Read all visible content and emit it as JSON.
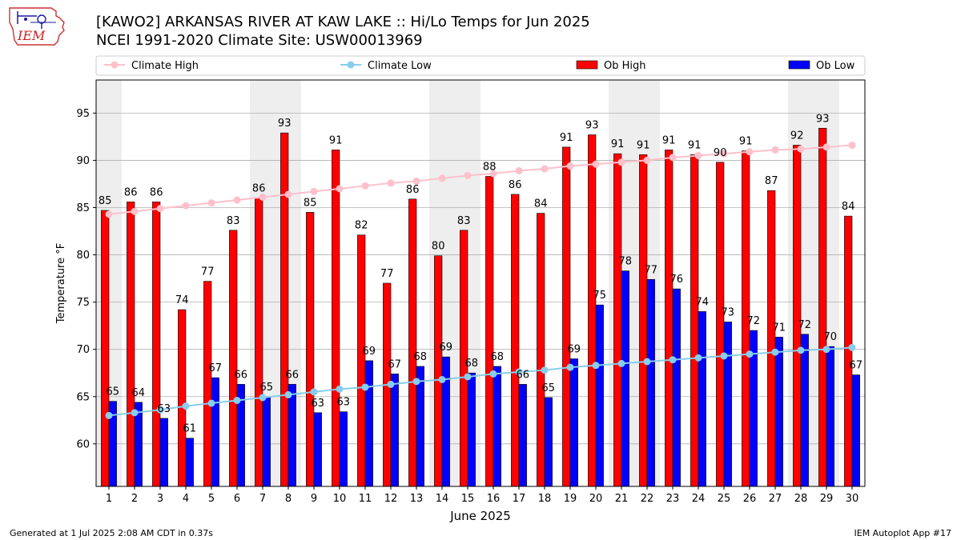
{
  "title": "[KAWO2] ARKANSAS RIVER  AT KAW LAKE :: Hi/Lo Temps for Jun 2025",
  "subtitle": "NCEI 1991-2020 Climate Site: USW00013969",
  "logo_text": "IEM",
  "footer_left": "Generated at 1 Jul 2025 2:08 AM CDT in 0.37s",
  "footer_right": "IEM Autoplot App #17",
  "colors": {
    "ob_high": "#ff0000",
    "ob_low": "#0000ff",
    "climate_high": "#ffc0cb",
    "climate_low": "#87ceeb",
    "weekend_shade": "#eeeeee",
    "grid": "#b0b0b0"
  },
  "chart_data": {
    "type": "bar",
    "xlabel": "June 2025",
    "ylabel": "Temperature °F",
    "ylim": [
      55.5,
      98.5
    ],
    "yticks": [
      60,
      65,
      70,
      75,
      80,
      85,
      90,
      95
    ],
    "grid": "horizontal",
    "legend_placement": "top",
    "categories": [
      "1",
      "2",
      "3",
      "4",
      "5",
      "6",
      "7",
      "8",
      "9",
      "10",
      "11",
      "12",
      "13",
      "14",
      "15",
      "16",
      "17",
      "18",
      "19",
      "20",
      "21",
      "22",
      "23",
      "24",
      "25",
      "26",
      "27",
      "28",
      "29",
      "30"
    ],
    "weekend_days": [
      1,
      7,
      8,
      14,
      15,
      21,
      22,
      28,
      29
    ],
    "series": [
      {
        "name": "Ob High",
        "kind": "bar",
        "values": [
          84.7,
          85.6,
          85.6,
          74.2,
          77.2,
          82.6,
          86.0,
          92.9,
          84.5,
          91.1,
          82.1,
          77.0,
          85.9,
          79.9,
          82.6,
          88.3,
          86.4,
          84.4,
          91.4,
          92.7,
          90.7,
          90.6,
          91.1,
          90.6,
          89.8,
          91.0,
          86.8,
          91.6,
          93.4,
          84.1
        ],
        "labels": [
          "85",
          "86",
          "86",
          "74",
          "77",
          "83",
          "86",
          "93",
          "85",
          "91",
          "82",
          "77",
          "86",
          "80",
          "83",
          "88",
          "86",
          "84",
          "91",
          "93",
          "91",
          "91",
          "91",
          "91",
          "90",
          "91",
          "87",
          "92",
          "93",
          "84"
        ]
      },
      {
        "name": "Ob Low",
        "kind": "bar",
        "values": [
          64.5,
          64.4,
          62.7,
          60.6,
          67.0,
          66.3,
          65.0,
          66.3,
          63.3,
          63.4,
          68.8,
          67.4,
          68.2,
          69.2,
          67.5,
          68.2,
          66.3,
          64.9,
          69.0,
          74.7,
          78.3,
          77.4,
          76.4,
          74.0,
          72.9,
          72.0,
          71.3,
          71.6,
          70.3,
          67.3
        ],
        "labels": [
          "65",
          "64",
          "63",
          "61",
          "67",
          "66",
          "65",
          "66",
          "63",
          "63",
          "69",
          "67",
          "68",
          "69",
          "68",
          "68",
          "66",
          "65",
          "69",
          "75",
          "78",
          "77",
          "76",
          "74",
          "73",
          "72",
          "71",
          "72",
          "70",
          "67"
        ]
      },
      {
        "name": "Climate High",
        "kind": "line",
        "values": [
          84.3,
          84.6,
          84.9,
          85.2,
          85.5,
          85.8,
          86.1,
          86.4,
          86.7,
          87.0,
          87.3,
          87.6,
          87.8,
          88.1,
          88.4,
          88.6,
          88.9,
          89.1,
          89.4,
          89.6,
          89.8,
          90.0,
          90.3,
          90.5,
          90.7,
          90.9,
          91.1,
          91.2,
          91.4,
          91.6
        ]
      },
      {
        "name": "Climate Low",
        "kind": "line",
        "values": [
          63.0,
          63.3,
          63.6,
          64.0,
          64.3,
          64.6,
          64.9,
          65.2,
          65.5,
          65.8,
          66.0,
          66.3,
          66.6,
          66.8,
          67.1,
          67.4,
          67.6,
          67.8,
          68.1,
          68.3,
          68.5,
          68.7,
          68.9,
          69.1,
          69.3,
          69.5,
          69.7,
          69.9,
          70.0,
          70.2
        ]
      }
    ]
  }
}
